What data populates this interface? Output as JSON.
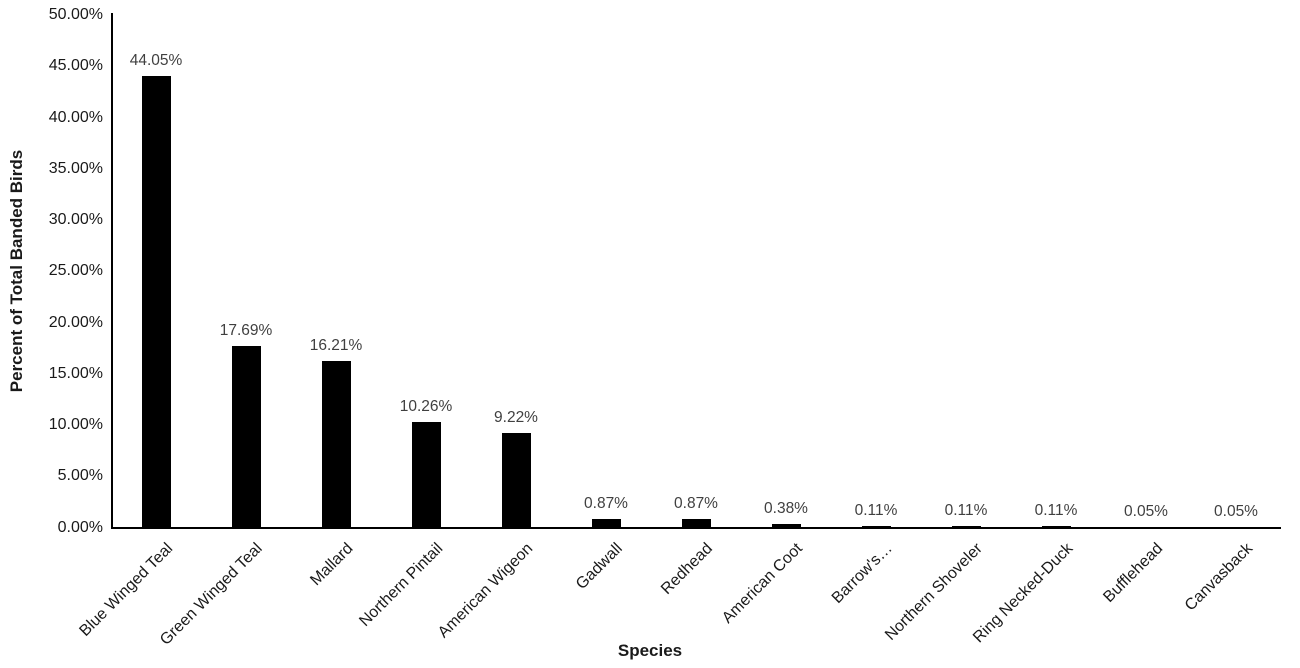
{
  "chart_data": {
    "type": "bar",
    "title": "",
    "xlabel": "Species",
    "ylabel": "Percent of Total Banded Birds",
    "categories": [
      "Blue Winged Teal",
      "Green Winged Teal",
      "Mallard",
      "Northern Pintail",
      "American Wigeon",
      "Gadwall",
      "Redhead",
      "American Coot",
      "Barrow's…",
      "Northern Shoveler",
      "Ring Necked-Duck",
      "Bufflehead",
      "Canvasback"
    ],
    "values": [
      44.05,
      17.69,
      16.21,
      10.26,
      9.22,
      0.87,
      0.87,
      0.38,
      0.11,
      0.11,
      0.11,
      0.05,
      0.05
    ],
    "value_labels": [
      "44.05%",
      "17.69%",
      "16.21%",
      "10.26%",
      "9.22%",
      "0.87%",
      "0.87%",
      "0.38%",
      "0.11%",
      "0.11%",
      "0.11%",
      "0.05%",
      "0.05%"
    ],
    "ytick_values": [
      0,
      5,
      10,
      15,
      20,
      25,
      30,
      35,
      40,
      45,
      50
    ],
    "ytick_labels": [
      "0.00%",
      "5.00%",
      "10.00%",
      "15.00%",
      "20.00%",
      "25.00%",
      "30.00%",
      "35.00%",
      "40.00%",
      "45.00%",
      "50.00%"
    ],
    "ylim": [
      0,
      50
    ],
    "grid": false,
    "legend": false,
    "bar_color": "#000000",
    "data_label_color": "#404040",
    "axis_color": "#000000",
    "tick_label_color": "#1a1a1a"
  }
}
